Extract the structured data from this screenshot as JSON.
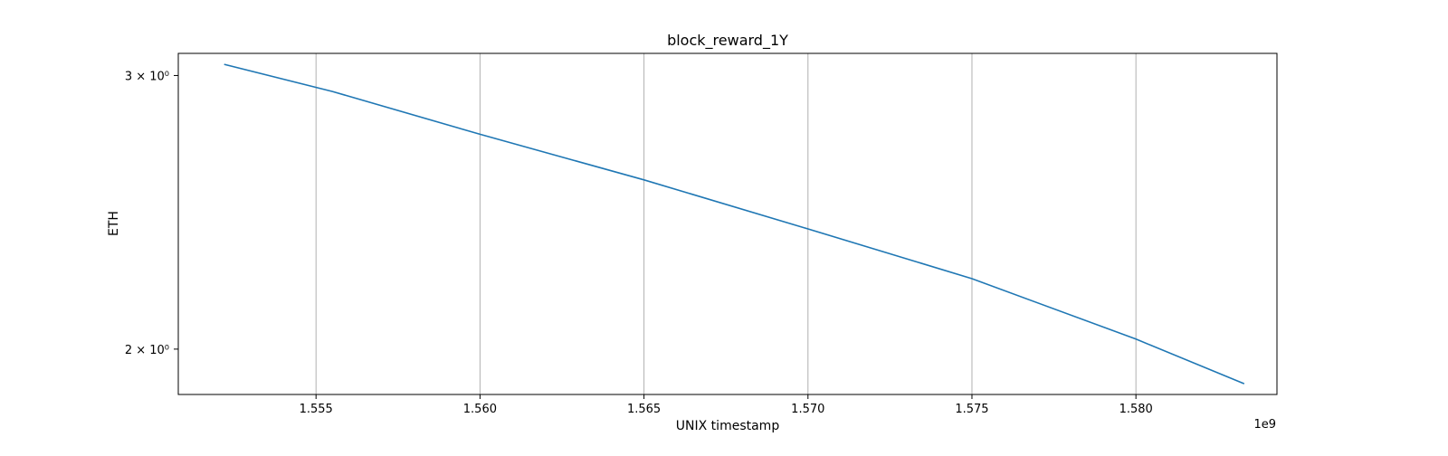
{
  "chart_data": {
    "type": "line",
    "title": "block_reward_1Y",
    "xlabel": "UNIX timestamp",
    "ylabel": "ETH",
    "x_offset_label": "1e9",
    "xlim": [
      1.5508,
      1.5843
    ],
    "ylim": [
      1.87,
      3.1
    ],
    "yscale": "log",
    "grid": "vertical",
    "line_color": "#1f77b4",
    "x_ticks": [
      {
        "value": 1.555,
        "label": "1.555"
      },
      {
        "value": 1.56,
        "label": "1.560"
      },
      {
        "value": 1.565,
        "label": "1.565"
      },
      {
        "value": 1.57,
        "label": "1.570"
      },
      {
        "value": 1.575,
        "label": "1.575"
      },
      {
        "value": 1.58,
        "label": "1.580"
      }
    ],
    "y_ticks": [
      {
        "value": 3.0,
        "label": "3 × 10⁰"
      },
      {
        "value": 2.0,
        "label": "2 × 10⁰"
      }
    ],
    "series": [
      {
        "x": [
          1.5522,
          1.5555,
          1.56,
          1.565,
          1.57,
          1.575,
          1.58,
          1.5833
        ],
        "y": [
          3.05,
          2.93,
          2.75,
          2.57,
          2.39,
          2.22,
          2.03,
          1.9
        ]
      }
    ]
  }
}
